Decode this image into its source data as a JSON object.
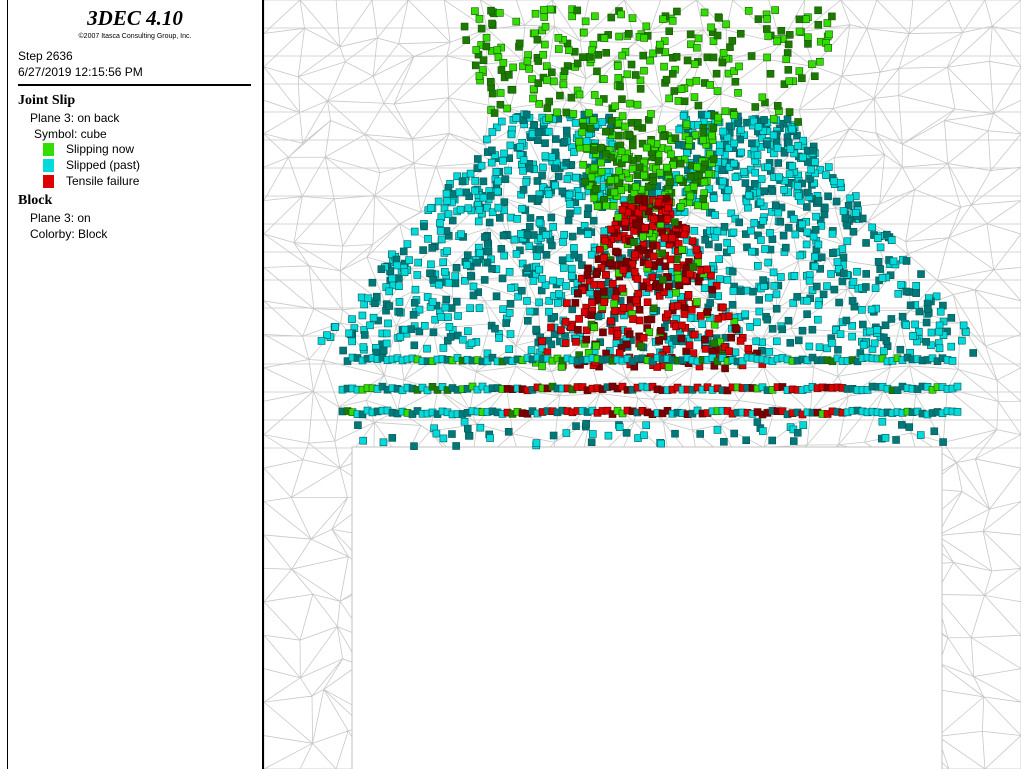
{
  "header": {
    "title": "3DEC 4.10",
    "copyright": "©2007 Itasca Consulting Group, Inc.",
    "step": "Step 2636",
    "datetime": "6/27/2019 12:15:56 PM"
  },
  "legend": {
    "joint_slip": {
      "title": "Joint Slip",
      "plane": "Plane 3: on back",
      "symbol": "Symbol: cube",
      "keys": [
        {
          "label": "Slipping now",
          "color": "#33dd00"
        },
        {
          "label": "Slipped (past)",
          "color": "#00dada"
        },
        {
          "label": "Tensile failure",
          "color": "#dd0000"
        }
      ]
    },
    "block": {
      "title": "Block",
      "plane": "Plane 3: on",
      "colorby": "Colorby: Block"
    }
  }
}
